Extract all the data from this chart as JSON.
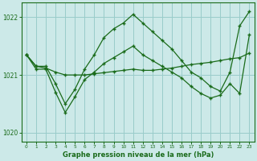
{
  "xlabel": "Graphe pression niveau de la mer (hPa)",
  "ylim": [
    1019.85,
    1022.25
  ],
  "xlim": [
    -0.5,
    23.5
  ],
  "yticks": [
    1020,
    1021,
    1022
  ],
  "xticks": [
    0,
    1,
    2,
    3,
    4,
    5,
    6,
    7,
    8,
    9,
    10,
    11,
    12,
    13,
    14,
    15,
    16,
    17,
    18,
    19,
    20,
    21,
    22,
    23
  ],
  "bg_color": "#cce9e8",
  "grid_color": "#99ccca",
  "line_color": "#1a6b1a",
  "yA": [
    1021.35,
    1021.15,
    1021.15,
    1020.85,
    1020.5,
    1020.75,
    1021.1,
    1021.35,
    1021.65,
    1021.8,
    1021.9,
    1022.05,
    1021.9,
    1021.75,
    1021.6,
    1021.45,
    1021.25,
    1021.05,
    1020.95,
    1020.8,
    1020.72,
    1021.05,
    1021.85,
    1022.1
  ],
  "yB": [
    1021.35,
    1021.1,
    1021.1,
    1020.7,
    1020.35,
    1020.62,
    1020.92,
    1021.05,
    1021.2,
    1021.3,
    1021.4,
    1021.5,
    1021.35,
    1021.25,
    1021.15,
    1021.05,
    1020.95,
    1020.8,
    1020.68,
    1020.6,
    1020.65,
    1020.85,
    1020.68,
    1021.7
  ],
  "yC": [
    1021.35,
    1021.15,
    1021.12,
    1021.05,
    1021.0,
    1021.0,
    1021.0,
    1021.02,
    1021.04,
    1021.06,
    1021.08,
    1021.1,
    1021.08,
    1021.08,
    1021.1,
    1021.12,
    1021.15,
    1021.18,
    1021.2,
    1021.22,
    1021.25,
    1021.28,
    1021.3,
    1021.38
  ]
}
